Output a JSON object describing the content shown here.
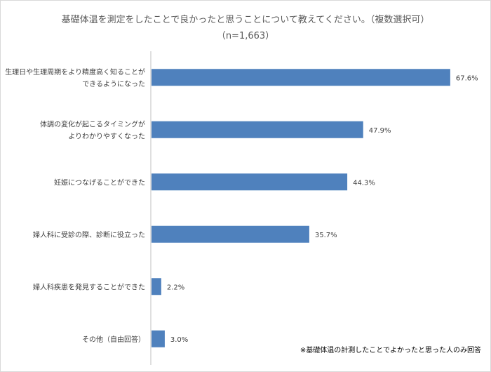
{
  "chart_data": {
    "type": "bar",
    "orientation": "horizontal",
    "title": "基礎体温を測定をしたことで良かったと思うことについて教えてください。（複数選択可）",
    "subtitle": "（n=1,663）",
    "categories": [
      [
        "生理日や生理周期をより精度高く知ることが",
        "できるようになった"
      ],
      [
        "体調の変化が起こるタイミングが",
        "よりわかりやすくなった"
      ],
      [
        "妊娠につなげることができた"
      ],
      [
        "婦人科に受診の際、診断に役立った"
      ],
      [
        "婦人科疾患を発見することができた"
      ],
      [
        "その他（自由回答）"
      ]
    ],
    "values": [
      67.6,
      47.9,
      44.3,
      35.7,
      2.2,
      3.0
    ],
    "value_labels": [
      "67.6%",
      "47.9%",
      "44.3%",
      "35.7%",
      "2.2%",
      "3.0%"
    ],
    "xlim": [
      0,
      70
    ],
    "bar_color": "#4f81bd",
    "grid": false,
    "legend": "none",
    "note": "※基礎体温の計測したことでよかったと思った人のみ回答"
  }
}
